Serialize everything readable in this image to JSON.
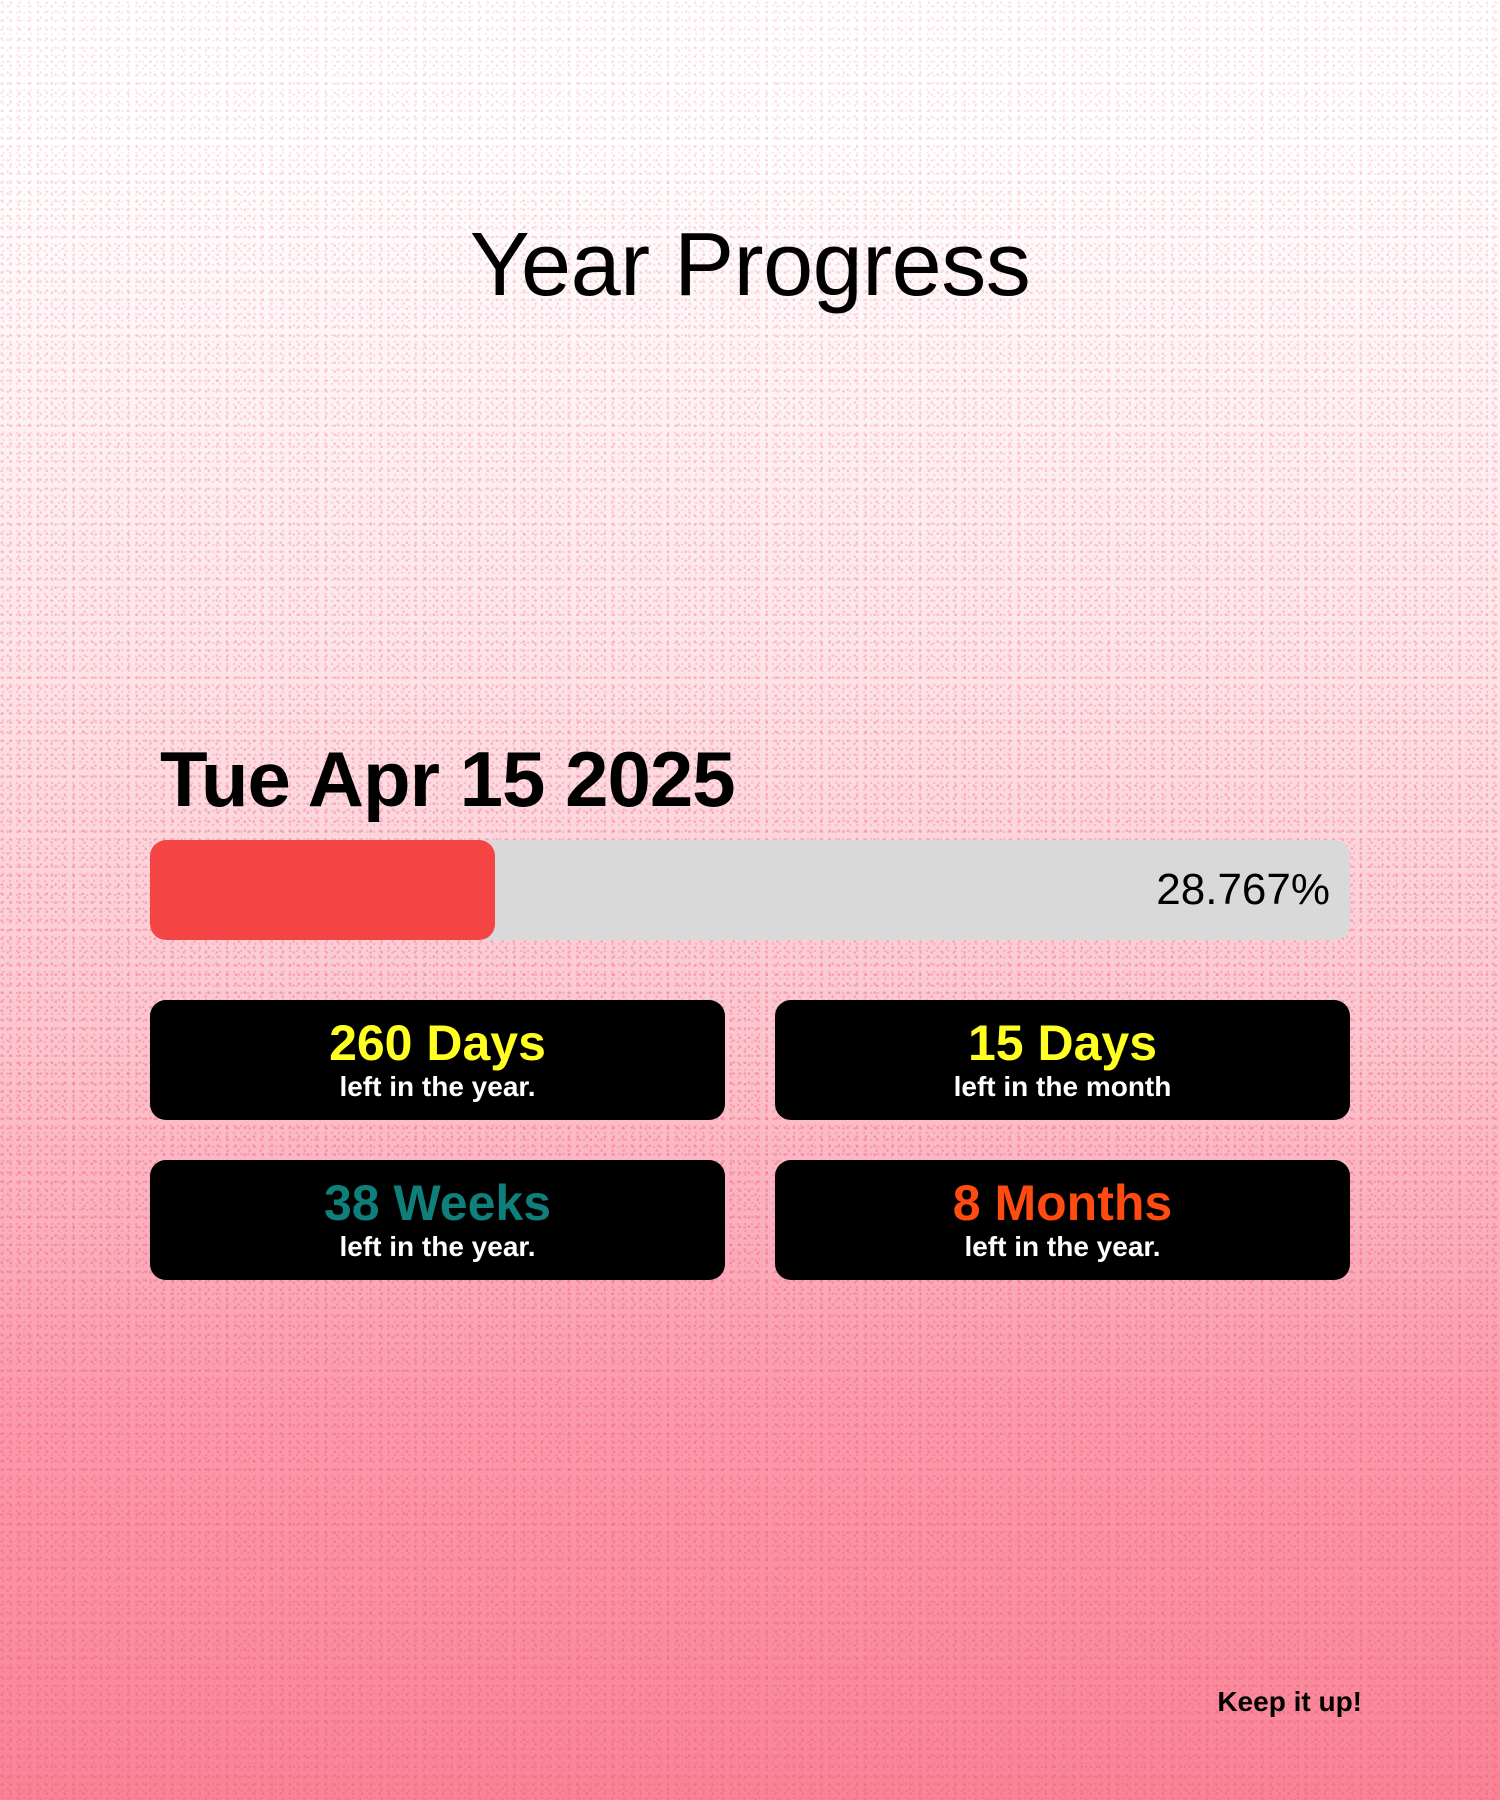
{
  "header": {
    "title": "Year Progress"
  },
  "date": {
    "label": "Tue Apr 15 2025"
  },
  "progress": {
    "percent": 28.767,
    "text": "28.767%",
    "fill_color": "#f44444",
    "track_color": "#d9d9d9"
  },
  "cards": [
    {
      "value": "260 Days",
      "caption": "left in the year.",
      "color": "#ffff22"
    },
    {
      "value": "15 Days",
      "caption": "left in the month",
      "color": "#ffff22"
    },
    {
      "value": "38 Weeks",
      "caption": "left in the year.",
      "color": "#0e7f7a"
    },
    {
      "value": "8 Months",
      "caption": "left in the year.",
      "color": "#ff4a10"
    }
  ],
  "footer": {
    "text": "Keep it up!"
  }
}
